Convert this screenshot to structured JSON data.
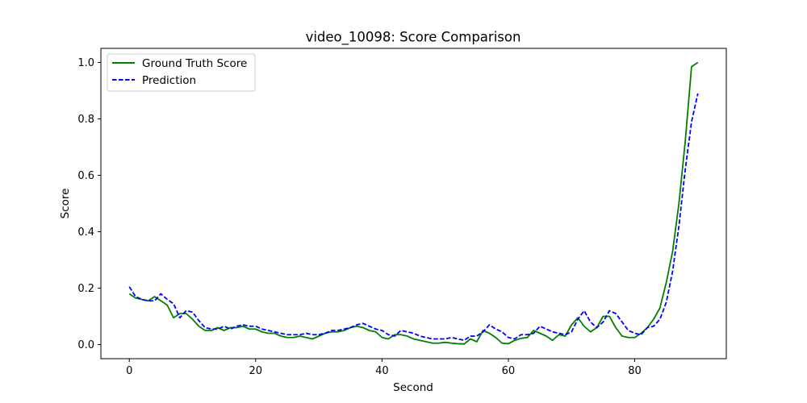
{
  "chart_data": {
    "type": "line",
    "title": "video_10098: Score Comparison",
    "xlabel": "Second",
    "ylabel": "Score",
    "xlim": [
      -4.5,
      94.5
    ],
    "ylim": [
      -0.05,
      1.05
    ],
    "xticks": [
      0,
      20,
      40,
      60,
      80
    ],
    "yticks": [
      0.0,
      0.2,
      0.4,
      0.6,
      0.8,
      1.0
    ],
    "xtick_labels": [
      "0",
      "20",
      "40",
      "60",
      "80"
    ],
    "ytick_labels": [
      "0.0",
      "0.2",
      "0.4",
      "0.6",
      "0.8",
      "1.0"
    ],
    "grid": false,
    "legend_position": "top-left",
    "series": [
      {
        "name": "Ground Truth Score",
        "color": "#008000",
        "style": "solid",
        "x": [
          0,
          1,
          2,
          3,
          4,
          5,
          6,
          7,
          8,
          9,
          10,
          11,
          12,
          13,
          14,
          15,
          16,
          17,
          18,
          19,
          20,
          21,
          22,
          23,
          24,
          25,
          26,
          27,
          28,
          29,
          30,
          31,
          32,
          33,
          34,
          35,
          36,
          37,
          38,
          39,
          40,
          41,
          42,
          43,
          44,
          45,
          46,
          47,
          48,
          49,
          50,
          51,
          52,
          53,
          54,
          55,
          56,
          57,
          58,
          59,
          60,
          61,
          62,
          63,
          64,
          65,
          66,
          67,
          68,
          69,
          70,
          71,
          72,
          73,
          74,
          75,
          76,
          77,
          78,
          79,
          80,
          81,
          82,
          83,
          84,
          85,
          86,
          87,
          88,
          89,
          90
        ],
        "values": [
          0.18,
          0.165,
          0.16,
          0.155,
          0.17,
          0.155,
          0.14,
          0.095,
          0.11,
          0.11,
          0.09,
          0.065,
          0.05,
          0.05,
          0.06,
          0.05,
          0.06,
          0.06,
          0.065,
          0.055,
          0.055,
          0.045,
          0.04,
          0.04,
          0.03,
          0.025,
          0.025,
          0.03,
          0.025,
          0.02,
          0.03,
          0.04,
          0.045,
          0.045,
          0.05,
          0.06,
          0.065,
          0.06,
          0.05,
          0.045,
          0.025,
          0.02,
          0.035,
          0.035,
          0.03,
          0.02,
          0.015,
          0.01,
          0.005,
          0.005,
          0.008,
          0.005,
          0.003,
          0.002,
          0.02,
          0.01,
          0.05,
          0.04,
          0.025,
          0.005,
          0.003,
          0.015,
          0.022,
          0.025,
          0.05,
          0.04,
          0.03,
          0.015,
          0.035,
          0.03,
          0.07,
          0.095,
          0.065,
          0.045,
          0.06,
          0.1,
          0.1,
          0.06,
          0.03,
          0.025,
          0.025,
          0.04,
          0.06,
          0.09,
          0.13,
          0.22,
          0.33,
          0.5,
          0.72,
          0.985,
          1.0
        ]
      },
      {
        "name": "Prediction",
        "color": "#0000ff",
        "style": "dashed",
        "x": [
          0,
          1,
          2,
          3,
          4,
          5,
          6,
          7,
          8,
          9,
          10,
          11,
          12,
          13,
          14,
          15,
          16,
          17,
          18,
          19,
          20,
          21,
          22,
          23,
          24,
          25,
          26,
          27,
          28,
          29,
          30,
          31,
          32,
          33,
          34,
          35,
          36,
          37,
          38,
          39,
          40,
          41,
          42,
          43,
          44,
          45,
          46,
          47,
          48,
          49,
          50,
          51,
          52,
          53,
          54,
          55,
          56,
          57,
          58,
          59,
          60,
          61,
          62,
          63,
          64,
          65,
          66,
          67,
          68,
          69,
          70,
          71,
          72,
          73,
          74,
          75,
          76,
          77,
          78,
          79,
          80,
          81,
          82,
          83,
          84,
          85,
          86,
          87,
          88,
          89,
          90
        ],
        "values": [
          0.205,
          0.17,
          0.16,
          0.155,
          0.155,
          0.18,
          0.16,
          0.145,
          0.095,
          0.12,
          0.115,
          0.085,
          0.06,
          0.055,
          0.055,
          0.065,
          0.055,
          0.065,
          0.07,
          0.065,
          0.065,
          0.055,
          0.05,
          0.045,
          0.04,
          0.035,
          0.035,
          0.035,
          0.04,
          0.035,
          0.035,
          0.04,
          0.05,
          0.05,
          0.055,
          0.06,
          0.07,
          0.075,
          0.065,
          0.055,
          0.05,
          0.035,
          0.03,
          0.05,
          0.045,
          0.04,
          0.03,
          0.025,
          0.02,
          0.02,
          0.02,
          0.025,
          0.02,
          0.015,
          0.03,
          0.03,
          0.045,
          0.07,
          0.055,
          0.045,
          0.025,
          0.02,
          0.035,
          0.035,
          0.04,
          0.065,
          0.055,
          0.045,
          0.04,
          0.035,
          0.045,
          0.09,
          0.12,
          0.08,
          0.06,
          0.08,
          0.12,
          0.11,
          0.08,
          0.05,
          0.04,
          0.035,
          0.06,
          0.065,
          0.09,
          0.15,
          0.26,
          0.42,
          0.62,
          0.79,
          0.89
        ]
      }
    ]
  }
}
